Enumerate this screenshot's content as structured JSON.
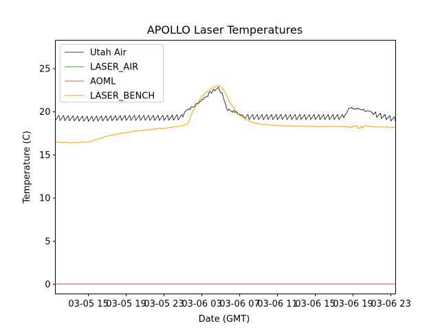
{
  "chart_data": {
    "type": "line",
    "title": "APOLLO Laser Temperatures",
    "xlabel": "Date (GMT)",
    "ylabel": "Temperature (C)",
    "x_unit": "hours",
    "xlim": [
      "03-05 11:30",
      "03-06 23:30"
    ],
    "ylim": [
      -1.1,
      28.3
    ],
    "x_ticks": [
      "03-05 15",
      "03-05 19",
      "03-05 23",
      "03-06 03",
      "03-06 07",
      "03-06 11",
      "03-06 15",
      "03-06 19",
      "03-06 23"
    ],
    "y_ticks": [
      "0",
      "5",
      "10",
      "15",
      "20",
      "25"
    ],
    "grid": false,
    "legend_position": "upper left",
    "series": [
      {
        "name": "Utah Air",
        "color": "#000000",
        "style": "oscillating ~19.0–19.7 with ~0.5 h period",
        "points": [
          [
            "03-05 11:30",
            19.3
          ],
          [
            "03-05 15:00",
            19.2
          ],
          [
            "03-05 19:00",
            19.3
          ],
          [
            "03-05 23:00",
            19.3
          ],
          [
            "03-06 01:00",
            19.4
          ],
          [
            "03-06 01:15",
            20.2
          ],
          [
            "03-06 02:00",
            20.5
          ],
          [
            "03-06 03:00",
            21.4
          ],
          [
            "03-06 04:00",
            22.3
          ],
          [
            "03-06 04:45",
            22.8
          ],
          [
            "03-06 05:15",
            21.8
          ],
          [
            "03-06 05:40",
            20.3
          ],
          [
            "03-06 06:30",
            20.0
          ],
          [
            "03-06 07:30",
            19.4
          ],
          [
            "03-06 11:00",
            19.4
          ],
          [
            "03-06 15:00",
            19.4
          ],
          [
            "03-06 18:00",
            19.4
          ],
          [
            "03-06 18:30",
            20.4
          ],
          [
            "03-06 20:00",
            20.3
          ],
          [
            "03-06 21:00",
            19.8
          ],
          [
            "03-06 23:30",
            19.1
          ]
        ]
      },
      {
        "name": "LASER_AIR",
        "color": "#008000",
        "points": []
      },
      {
        "name": "AOML",
        "color": "#d62728",
        "points": [
          [
            "03-05 11:30",
            0.05
          ],
          [
            "03-06 23:30",
            0.05
          ]
        ]
      },
      {
        "name": "LASER_BENCH",
        "color": "#ffa500",
        "points": [
          [
            "03-05 11:30",
            16.5
          ],
          [
            "03-05 13:00",
            16.4
          ],
          [
            "03-05 15:00",
            16.5
          ],
          [
            "03-05 17:00",
            17.2
          ],
          [
            "03-05 19:00",
            17.6
          ],
          [
            "03-05 21:00",
            17.9
          ],
          [
            "03-05 23:00",
            18.1
          ],
          [
            "03-06 01:00",
            18.4
          ],
          [
            "03-06 01:30",
            18.6
          ],
          [
            "03-06 02:00",
            20.0
          ],
          [
            "03-06 03:00",
            21.8
          ],
          [
            "03-06 04:00",
            22.7
          ],
          [
            "03-06 04:50",
            23.1
          ],
          [
            "03-06 05:20",
            22.5
          ],
          [
            "03-06 06:00",
            21.0
          ],
          [
            "03-06 07:00",
            19.6
          ],
          [
            "03-06 08:00",
            18.9
          ],
          [
            "03-06 09:00",
            18.6
          ],
          [
            "03-06 11:00",
            18.4
          ],
          [
            "03-06 15:00",
            18.3
          ],
          [
            "03-06 18:00",
            18.3
          ],
          [
            "03-06 19:00",
            18.2
          ],
          [
            "03-06 21:00",
            18.3
          ],
          [
            "03-06 23:30",
            18.2
          ]
        ]
      }
    ]
  }
}
